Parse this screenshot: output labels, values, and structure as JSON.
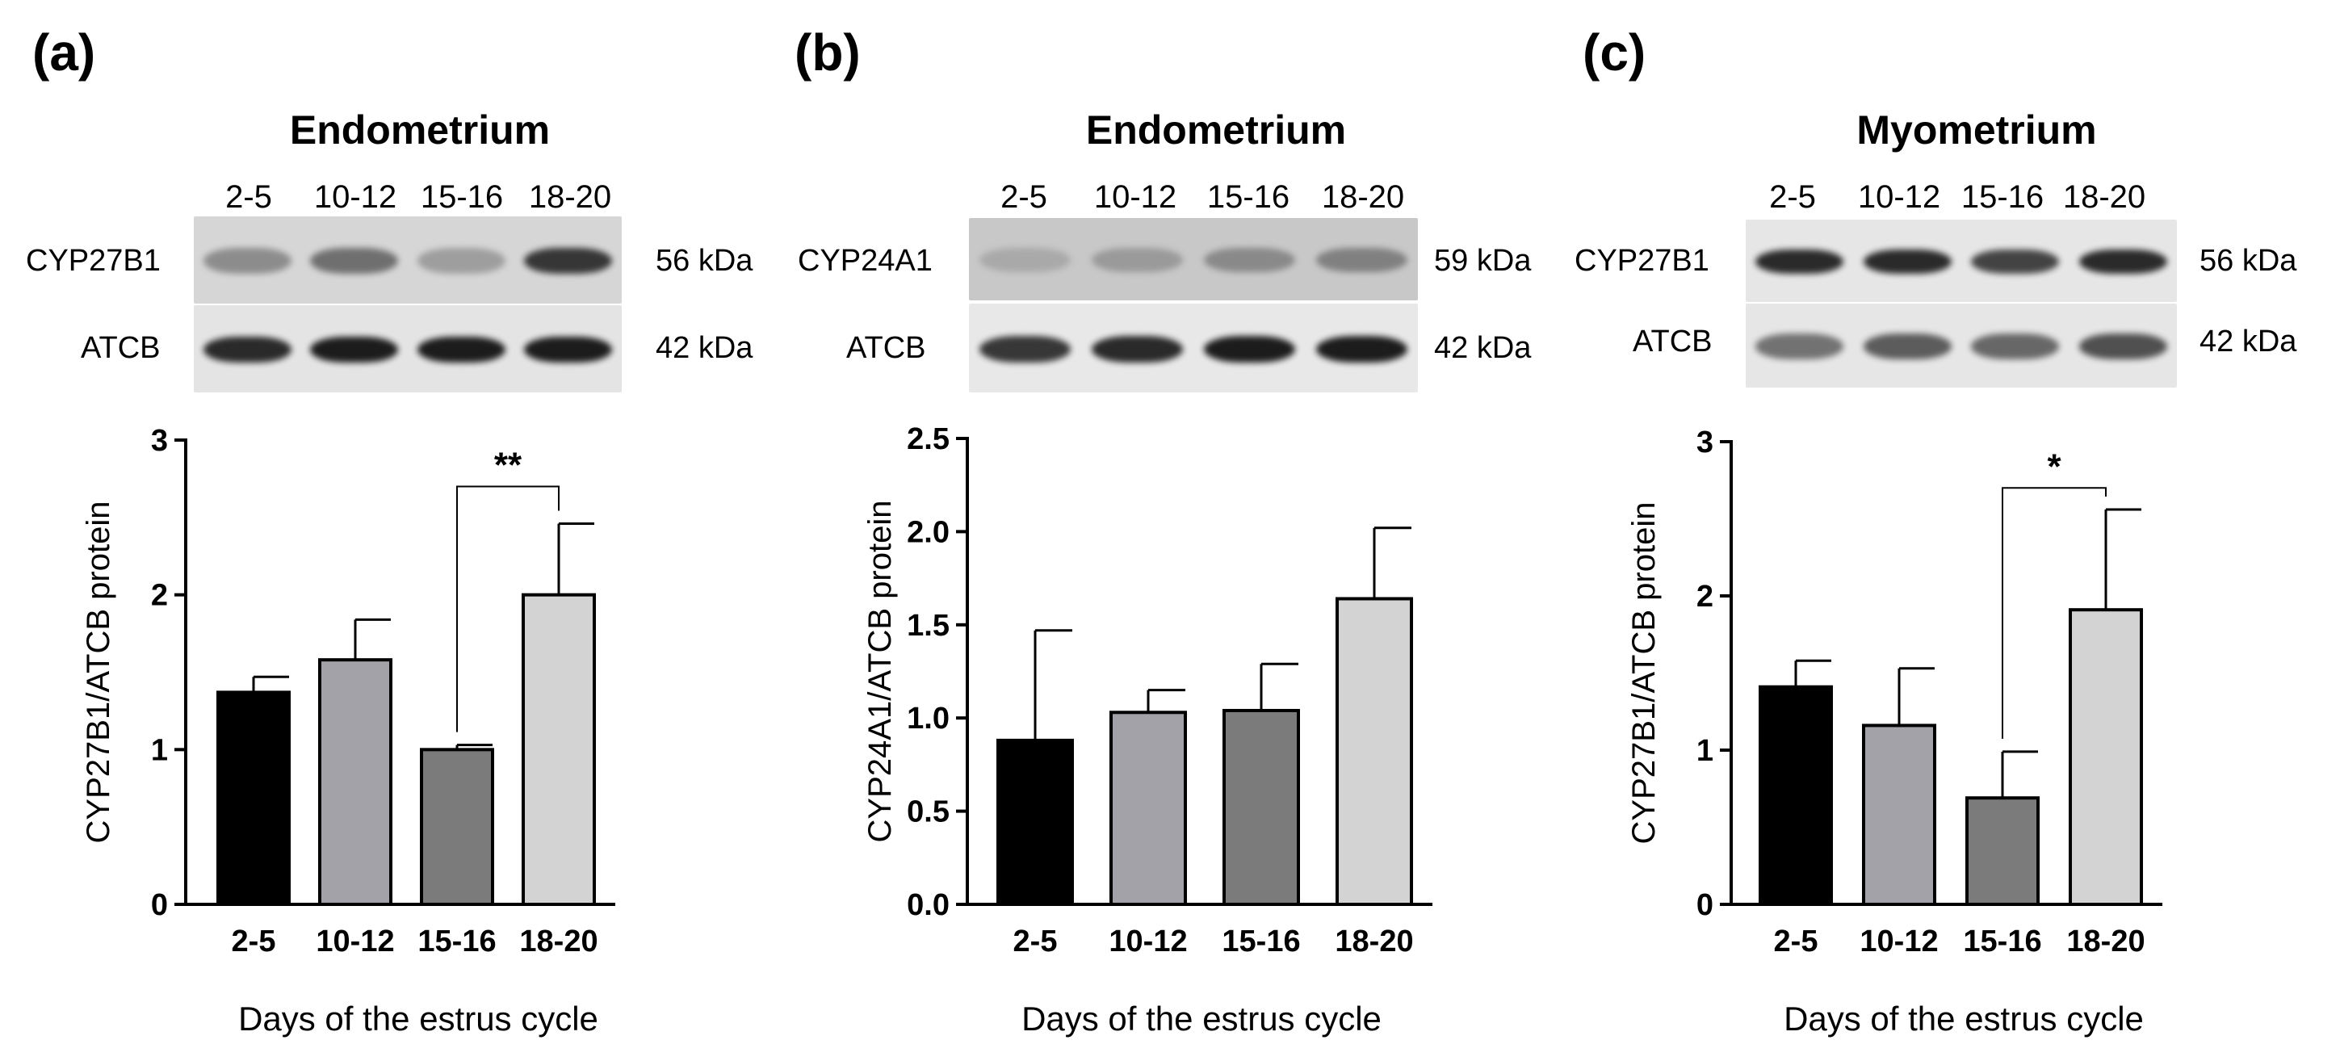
{
  "panels": [
    {
      "letter": "(a)",
      "tissue": "Endometrium",
      "lanes": [
        "2-5",
        "10-12",
        "15-16",
        "18-20"
      ],
      "blots": [
        {
          "label": "CYP27B1",
          "kda": "56 kDa",
          "bg": "#d6d6d6",
          "intensity": [
            0.45,
            0.6,
            0.35,
            0.85
          ]
        },
        {
          "label": "ATCB",
          "kda": "42 kDa",
          "bg": "#e4e4e4",
          "intensity": [
            0.9,
            0.95,
            0.95,
            0.95
          ]
        }
      ]
    },
    {
      "letter": "(b)",
      "tissue": "Endometrium",
      "lanes": [
        "2-5",
        "10-12",
        "15-16",
        "18-20"
      ],
      "blots": [
        {
          "label": "CYP24A1",
          "kda": "59 kDa",
          "bg": "#c8c8c8",
          "intensity": [
            0.25,
            0.35,
            0.45,
            0.5
          ]
        },
        {
          "label": "ATCB",
          "kda": "42 kDa",
          "bg": "#e8e8e8",
          "intensity": [
            0.85,
            0.9,
            0.95,
            0.95
          ]
        }
      ]
    },
    {
      "letter": "(c)",
      "tissue": "Myometrium",
      "lanes": [
        "2-5",
        "10-12",
        "15-16",
        "18-20"
      ],
      "blots": [
        {
          "label": "CYP27B1",
          "kda": "56 kDa",
          "bg": "#e6e6e6",
          "intensity": [
            0.9,
            0.9,
            0.8,
            0.9
          ]
        },
        {
          "label": "ATCB",
          "kda": "42 kDa",
          "bg": "#e6e6e6",
          "intensity": [
            0.6,
            0.7,
            0.65,
            0.75
          ]
        }
      ]
    }
  ],
  "chart_data": [
    {
      "type": "bar",
      "categories": [
        "2-5",
        "10-12",
        "15-16",
        "18-20"
      ],
      "values": [
        1.37,
        1.58,
        1.0,
        2.0
      ],
      "errors": [
        0.1,
        0.26,
        0.03,
        0.46
      ],
      "colors": [
        "#000000",
        "#a3a2a8",
        "#7b7b7b",
        "#d3d3d3"
      ],
      "ylabel": "CYP27B1/ATCB protein",
      "xlabel": "Days of the estrus cycle",
      "ylim": [
        0,
        3
      ],
      "yticks": [
        "0",
        "1",
        "2",
        "3"
      ],
      "significance": {
        "from": "15-16",
        "to": "18-20",
        "label": "**"
      }
    },
    {
      "type": "bar",
      "categories": [
        "2-5",
        "10-12",
        "15-16",
        "18-20"
      ],
      "values": [
        0.88,
        1.03,
        1.04,
        1.64
      ],
      "errors": [
        0.59,
        0.12,
        0.25,
        0.38
      ],
      "colors": [
        "#000000",
        "#a3a2a8",
        "#7b7b7b",
        "#d3d3d3"
      ],
      "ylabel": "CYP24A1/ATCB protein",
      "xlabel": "Days of the estrus cycle",
      "ylim": [
        0,
        2.5
      ],
      "yticks": [
        "0.0",
        "0.5",
        "1.0",
        "1.5",
        "2.0",
        "2.5"
      ]
    },
    {
      "type": "bar",
      "categories": [
        "2-5",
        "10-12",
        "15-16",
        "18-20"
      ],
      "values": [
        1.41,
        1.16,
        0.69,
        1.91
      ],
      "errors": [
        0.17,
        0.37,
        0.3,
        0.65
      ],
      "colors": [
        "#000000",
        "#a3a2a8",
        "#7b7b7b",
        "#d3d3d3"
      ],
      "ylabel": "CYP27B1/ATCB protein",
      "xlabel": "Days of the estrus cycle",
      "ylim": [
        0,
        3
      ],
      "yticks": [
        "0",
        "1",
        "2",
        "3"
      ],
      "significance": {
        "from": "15-16",
        "to": "18-20",
        "label": "*"
      }
    }
  ]
}
